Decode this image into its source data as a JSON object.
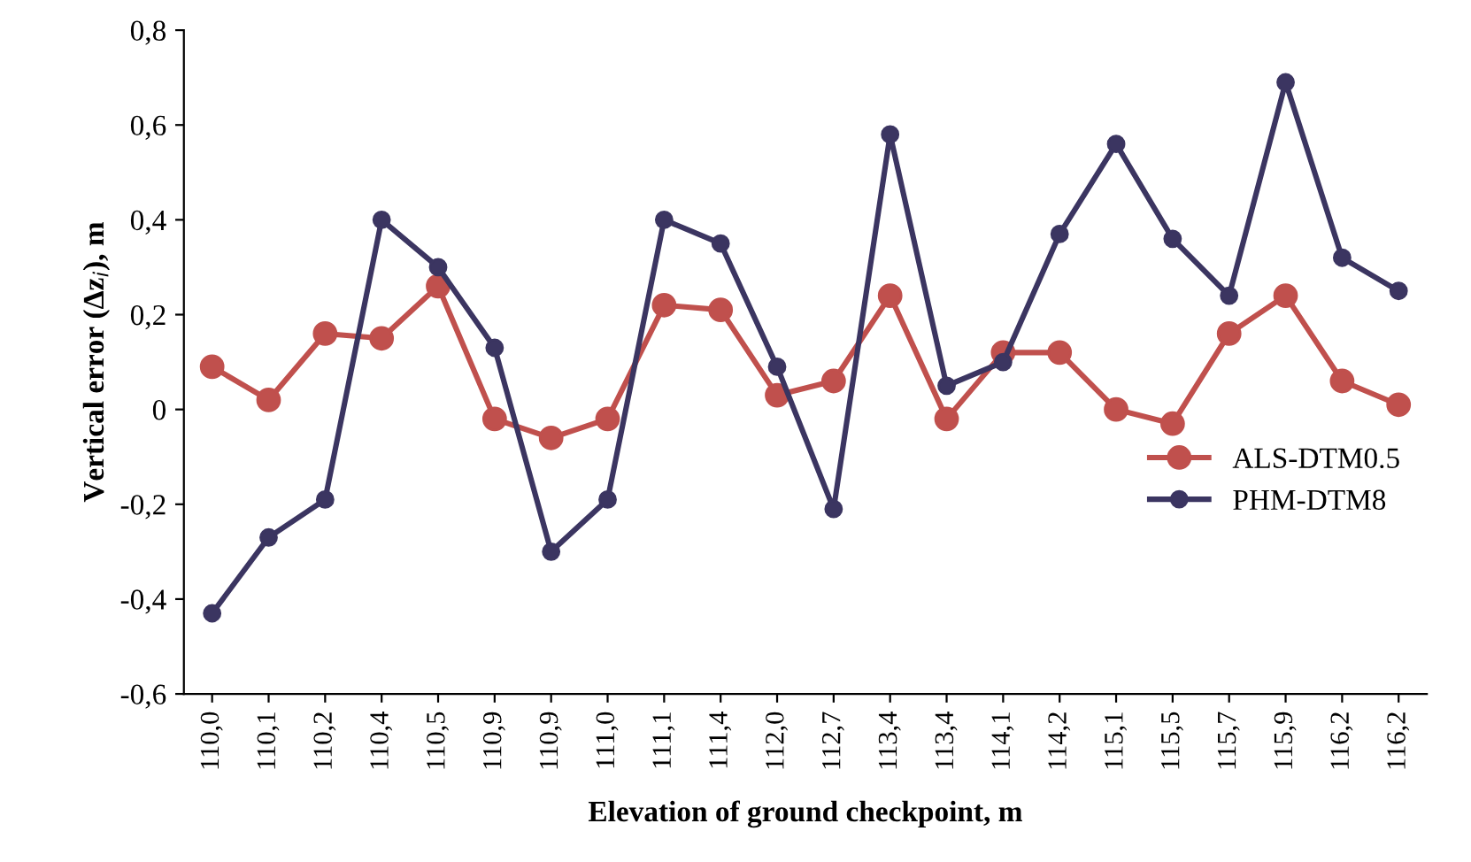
{
  "chart_data": {
    "type": "line",
    "xlabel": "Elevation of ground checkpoint, m",
    "ylabel": "Vertical error (Δz$_{i}$), m",
    "categories": [
      "110,0",
      "110,1",
      "110,2",
      "110,4",
      "110,5",
      "110,9",
      "110,9",
      "111,0",
      "111,1",
      "111,4",
      "112,0",
      "112,7",
      "113,4",
      "113,4",
      "114,1",
      "114,2",
      "115,1",
      "115,5",
      "115,7",
      "115,9",
      "116,2",
      "116,2"
    ],
    "series": [
      {
        "name": "ALS-DTM0.5",
        "color": "#c0504d",
        "values": [
          0.09,
          0.02,
          0.16,
          0.15,
          0.26,
          -0.02,
          -0.06,
          -0.02,
          0.22,
          0.21,
          0.03,
          0.06,
          0.24,
          -0.02,
          0.12,
          0.12,
          0.0,
          -0.03,
          0.16,
          0.24,
          0.06,
          0.01
        ]
      },
      {
        "name": "PHM-DTM8",
        "color": "#3b3561",
        "values": [
          -0.43,
          -0.27,
          -0.19,
          0.4,
          0.3,
          0.13,
          -0.3,
          -0.19,
          0.4,
          0.35,
          0.09,
          -0.21,
          0.58,
          0.05,
          0.1,
          0.37,
          0.56,
          0.36,
          0.24,
          0.69,
          0.32,
          0.25
        ]
      }
    ],
    "ylim": [
      -0.6,
      0.8
    ],
    "yticks": [
      {
        "value": -0.6,
        "label": "-0,6"
      },
      {
        "value": -0.4,
        "label": "-0,4"
      },
      {
        "value": -0.2,
        "label": "-0,2"
      },
      0,
      {
        "value": 0.2,
        "label": "0,2"
      },
      {
        "value": 0.4,
        "label": "0,4"
      },
      {
        "value": 0.6,
        "label": "0,6"
      },
      {
        "value": 0.8,
        "label": "0,8"
      }
    ],
    "marker": "circle",
    "line_style": "solid",
    "grid": false,
    "legend": "center right"
  }
}
